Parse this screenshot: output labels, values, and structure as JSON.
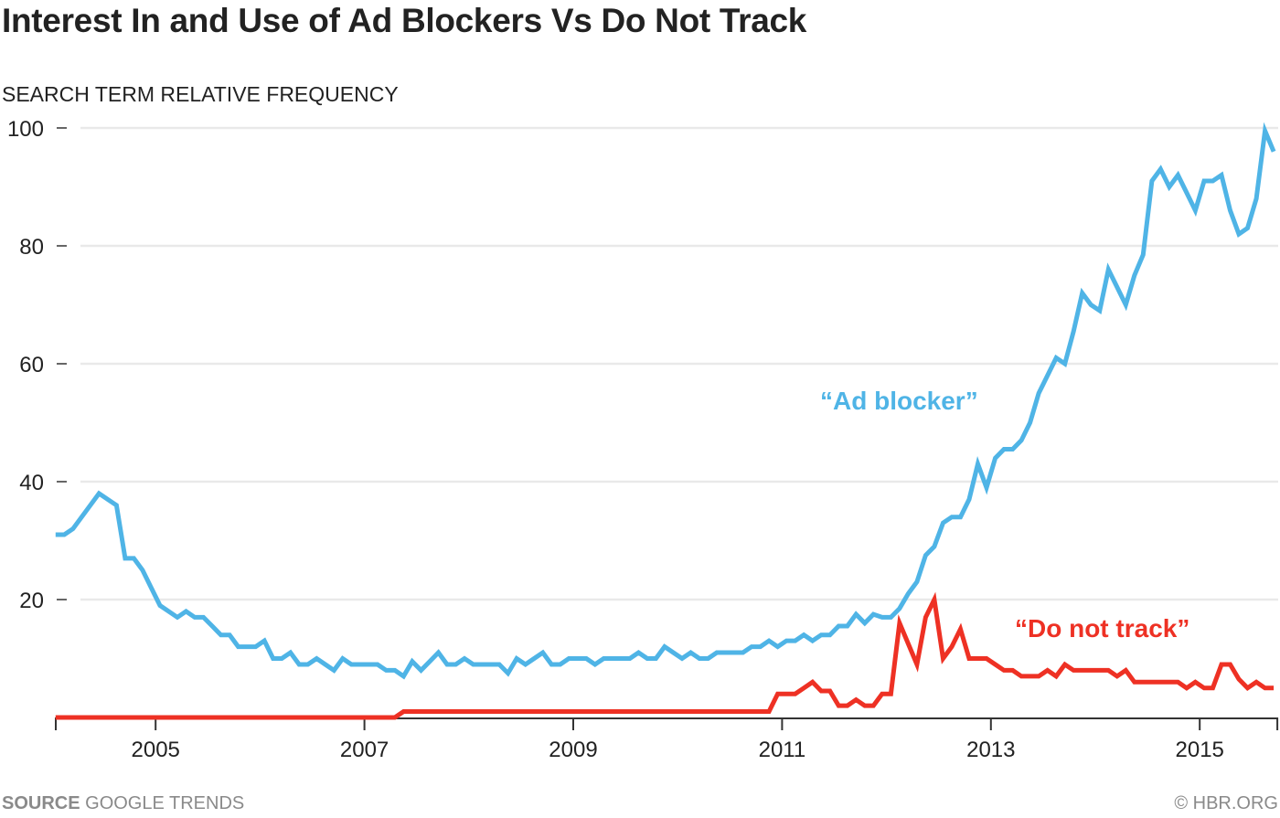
{
  "chart_data": {
    "type": "line",
    "title": "Interest In and Use of Ad Blockers Vs Do Not Track",
    "ylabel": "SEARCH TERM RELATIVE FREQUENCY",
    "xlabel": "",
    "ylim": [
      0,
      100
    ],
    "yticks": [
      20,
      40,
      60,
      80,
      100
    ],
    "xticks": [
      2005,
      2007,
      2009,
      2011,
      2013,
      2015
    ],
    "xlim": [
      "2004-01",
      "2015-09"
    ],
    "x_start": "2004-01",
    "x_frequency": "monthly",
    "grid": true,
    "series": [
      {
        "name": "“Ad blocker”",
        "color": "#4fb4e6",
        "values": [
          31,
          31,
          32,
          34,
          36,
          38,
          37,
          36,
          27,
          27,
          25,
          22,
          19,
          18,
          17,
          18,
          17,
          17,
          15.5,
          14,
          14,
          12,
          12,
          12,
          13,
          10,
          10,
          11,
          9,
          9,
          10,
          9,
          8,
          10,
          9,
          9,
          9,
          9,
          8,
          8,
          7,
          9.5,
          8,
          9.5,
          11,
          9,
          9,
          10,
          9,
          9,
          9,
          9,
          7.5,
          10,
          9,
          10,
          11,
          9,
          9,
          10,
          10,
          10,
          9,
          10,
          10,
          10,
          10,
          11,
          10,
          10,
          12,
          11,
          10,
          11,
          10,
          10,
          11,
          11,
          11,
          11,
          12,
          12,
          13,
          12,
          13,
          13,
          14,
          13,
          14,
          14,
          15.5,
          15.5,
          17.5,
          16,
          17.5,
          17,
          17,
          18.5,
          21,
          23,
          27.5,
          29,
          33,
          34,
          34,
          37,
          43,
          39,
          44,
          45.5,
          45.5,
          47,
          50,
          55,
          58,
          61,
          60,
          65.5,
          72,
          70,
          69,
          76,
          73,
          70,
          75,
          78.5,
          91,
          93,
          90,
          92,
          89,
          86,
          91,
          91,
          92,
          86,
          82,
          83,
          88,
          99.5,
          96
        ]
      },
      {
        "name": "“Do not track”",
        "color": "#ee3124",
        "values": [
          0,
          0,
          0,
          0,
          0,
          0,
          0,
          0,
          0,
          0,
          0,
          0,
          0,
          0,
          0,
          0,
          0,
          0,
          0,
          0,
          0,
          0,
          0,
          0,
          0,
          0,
          0,
          0,
          0,
          0,
          0,
          0,
          0,
          0,
          0,
          0,
          0,
          0,
          0,
          0,
          1,
          1,
          1,
          1,
          1,
          1,
          1,
          1,
          1,
          1,
          1,
          1,
          1,
          1,
          1,
          1,
          1,
          1,
          1,
          1,
          1,
          1,
          1,
          1,
          1,
          1,
          1,
          1,
          1,
          1,
          1,
          1,
          1,
          1,
          1,
          1,
          1,
          1,
          1,
          1,
          1,
          1,
          1,
          4,
          4,
          4,
          5,
          6,
          4.5,
          4.5,
          2,
          2,
          3,
          2,
          2,
          4,
          4,
          16,
          12.5,
          9,
          17,
          20,
          10,
          12,
          15,
          10,
          10,
          10,
          9,
          8,
          8,
          7,
          7,
          7,
          8,
          7,
          9,
          8,
          8,
          8,
          8,
          8,
          7,
          8,
          6,
          6,
          6,
          6,
          6,
          6,
          5,
          6,
          5,
          5,
          9,
          9,
          6.5,
          5,
          6,
          5,
          5
        ]
      }
    ]
  },
  "footer": {
    "source_label": "SOURCE",
    "source_value": "GOOGLE TRENDS",
    "credit": "© HBR.ORG"
  }
}
